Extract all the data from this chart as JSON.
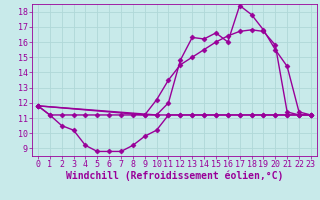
{
  "background_color": "#c8eaea",
  "grid_color": "#b0d8d8",
  "line_color": "#990099",
  "xlabel": "Windchill (Refroidissement éolien,°C)",
  "xlim": [
    -0.5,
    23.5
  ],
  "ylim": [
    8.5,
    18.5
  ],
  "yticks": [
    9,
    10,
    11,
    12,
    13,
    14,
    15,
    16,
    17,
    18
  ],
  "xticks": [
    0,
    1,
    2,
    3,
    4,
    5,
    6,
    7,
    8,
    9,
    10,
    11,
    12,
    13,
    14,
    15,
    16,
    17,
    18,
    19,
    20,
    21,
    22,
    23
  ],
  "series": [
    {
      "x": [
        0,
        1,
        2,
        3,
        4,
        5,
        6,
        7,
        8,
        9,
        10,
        11,
        12,
        13,
        14,
        15,
        16,
        17,
        18,
        19,
        20,
        21,
        22,
        23
      ],
      "y": [
        11.8,
        11.2,
        11.2,
        11.2,
        11.2,
        11.2,
        11.2,
        11.2,
        11.2,
        11.2,
        11.2,
        11.2,
        11.2,
        11.2,
        11.2,
        11.2,
        11.2,
        11.2,
        11.2,
        11.2,
        11.2,
        11.2,
        11.2,
        11.2
      ]
    },
    {
      "x": [
        0,
        1,
        2,
        3,
        4,
        5,
        6,
        7,
        8,
        9,
        10,
        11,
        12,
        13,
        14,
        15,
        16,
        17,
        18,
        19,
        20,
        21,
        22,
        23
      ],
      "y": [
        11.8,
        11.2,
        10.5,
        10.2,
        9.2,
        8.8,
        8.8,
        8.8,
        9.2,
        9.8,
        10.2,
        11.2,
        11.2,
        11.2,
        11.2,
        11.2,
        11.2,
        11.2,
        11.2,
        11.2,
        11.2,
        11.2,
        11.2,
        11.2
      ]
    },
    {
      "x": [
        0,
        10,
        11,
        12,
        13,
        14,
        15,
        16,
        17,
        18,
        19,
        20,
        21,
        22,
        23
      ],
      "y": [
        11.8,
        11.2,
        12.0,
        14.8,
        16.3,
        16.2,
        16.6,
        16.0,
        18.4,
        17.8,
        16.8,
        15.5,
        14.4,
        11.4,
        11.2
      ]
    },
    {
      "x": [
        0,
        9,
        10,
        11,
        12,
        13,
        14,
        15,
        16,
        17,
        18,
        19,
        20,
        21,
        22,
        23
      ],
      "y": [
        11.8,
        11.2,
        12.2,
        13.5,
        14.5,
        15.0,
        15.5,
        16.0,
        16.4,
        16.7,
        16.8,
        16.7,
        15.8,
        11.4,
        11.2,
        11.2
      ]
    }
  ],
  "marker": "D",
  "marker_size": 2.5,
  "line_width": 1.0,
  "xlabel_fontsize": 7,
  "tick_fontsize": 6,
  "font_family": "monospace"
}
